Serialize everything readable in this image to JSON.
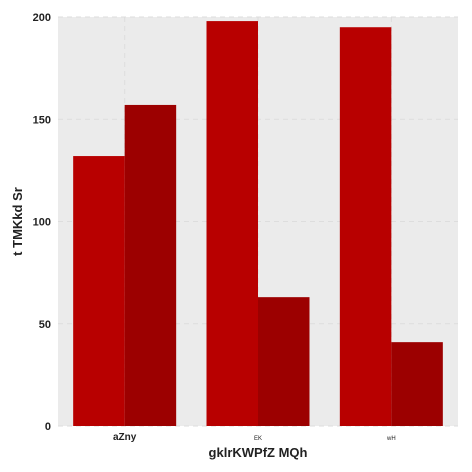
{
  "chart_data": {
    "type": "bar",
    "categories": [
      "aZny",
      "EK",
      "wH"
    ],
    "series": [
      {
        "values": [
          132,
          198,
          195
        ]
      },
      {
        "values": [
          157,
          63,
          41
        ]
      }
    ],
    "xlabel": "gklrKWPfZ MQh",
    "ylabel": "t TMKkd  Sr",
    "ylim": [
      0,
      200
    ],
    "yticks": [
      0,
      50,
      100,
      150,
      200
    ],
    "grid": true
  },
  "colors": {
    "plot_background": "#ebebeb",
    "grid": "#dddddd",
    "series": [
      "#b80000",
      "#9c0000"
    ]
  }
}
